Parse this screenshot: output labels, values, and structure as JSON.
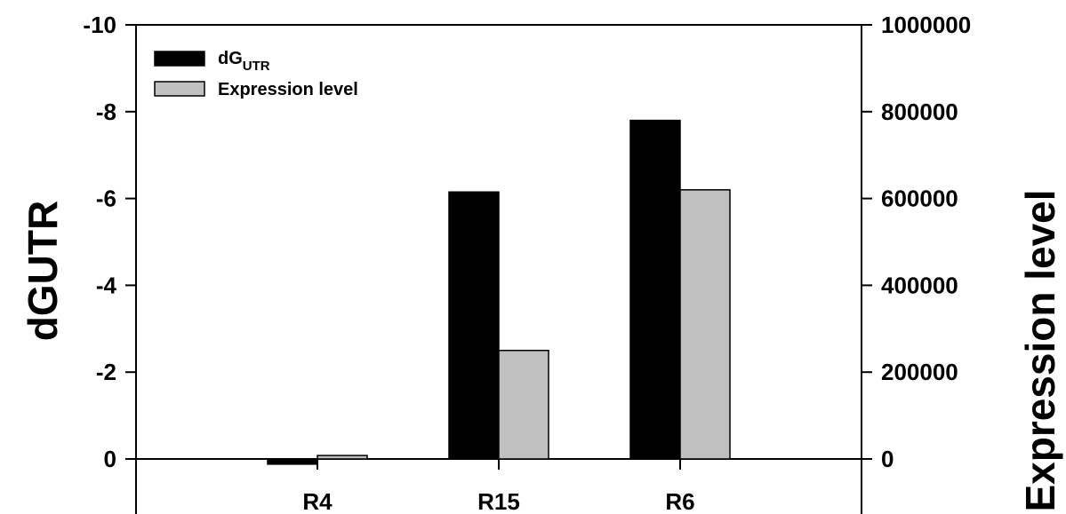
{
  "chart_data": {
    "type": "bar",
    "categories": [
      "R4",
      "R15",
      "R6"
    ],
    "series": [
      {
        "name": "dG",
        "name_sub": "UTR",
        "axis": "left",
        "color": "#000000",
        "values": [
          0.12,
          -6.15,
          -7.8
        ]
      },
      {
        "name": "Expression level",
        "axis": "right",
        "color": "#c0c0c0",
        "values": [
          8000,
          250000,
          620000
        ]
      }
    ],
    "ylabel": "dGUTR",
    "y2label": "Expression level",
    "ylim": [
      0,
      -10
    ],
    "y2lim": [
      0,
      1000000
    ],
    "yticks": [
      "-10",
      "-8",
      "-6",
      "-4",
      "-2",
      "0"
    ],
    "y2ticks": [
      "1000000",
      "800000",
      "600000",
      "400000",
      "200000",
      "0"
    ],
    "legend_position": "top-left",
    "grid": false
  }
}
